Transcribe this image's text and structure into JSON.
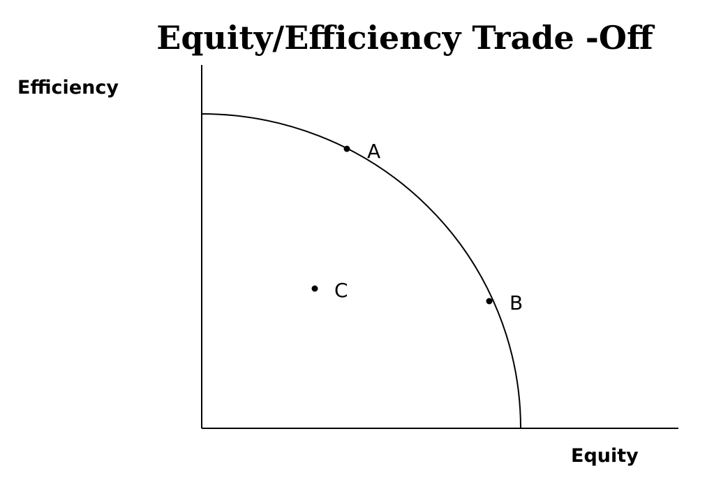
{
  "title": "Equity/Efficiency Trade -Off",
  "y_axis_label": "Efficiency",
  "x_axis_label": "Equity",
  "points": [
    {
      "label": "A",
      "on_frontier": true
    },
    {
      "label": "B",
      "on_frontier": true
    },
    {
      "label": "C",
      "on_frontier": false
    }
  ]
}
